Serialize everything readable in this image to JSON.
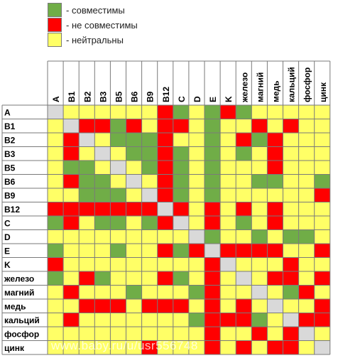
{
  "legend": [
    {
      "color": "#70ad47",
      "label": "- совместимы"
    },
    {
      "color": "#ff0000",
      "label": "- не совместимы"
    },
    {
      "color": "#ffff66",
      "label": "- нейтральны"
    }
  ],
  "watermark": "www.baby.ru/u/usr556748",
  "chart_data": {
    "type": "heatmap",
    "title": "",
    "columns": [
      "A",
      "B1",
      "B2",
      "B3",
      "B5",
      "B6",
      "B9",
      "B12",
      "C",
      "D",
      "E",
      "K",
      "железо",
      "магний",
      "медь",
      "кальций",
      "фосфор",
      "цинк"
    ],
    "rows": [
      "A",
      "B1",
      "B2",
      "B3",
      "B5",
      "B6",
      "B9",
      "B12",
      "C",
      "D",
      "E",
      "K",
      "железо",
      "магний",
      "медь",
      "кальций",
      "фосфор",
      "цинк"
    ],
    "codes": {
      "G": "совместимы",
      "R": "не совместимы",
      "Y": "нейтральны",
      "S": "—"
    },
    "colors": {
      "G": "#70ad47",
      "R": "#ff0000",
      "Y": "#ffff66",
      "S": "#d9d9d9"
    },
    "matrix": [
      "SYYYYYYRGYGRGYYYYY",
      "YSRRGRYRRYGYYRYRYY",
      "YRSYGGGRYYGYRGRYYY",
      "YRYSYGGRGYGYGYRYYY",
      "YGGYSYGRGYGYYYRYYY",
      "YRGGYSYRGYGYYGGYYG",
      "YYGGGYSRGYGYYYYYYR",
      "RRRRRRRSRYRYRYRYYY",
      "GRYGGYGRSYRYGYRYYY",
      "YYYYYYYYYSGYYGYGGY",
      "GYYYGYYRGRSRRRRYYR",
      "RYYYYYYYYYRSYYYRYY",
      "GYRGYYYRGYRYSYRRYR",
      "YRYYYGYYYGRYYSYGRY",
      "YYRRRYRRRYRYRYSYYR",
      "YRYYYYYYYGRRRGYSRR",
      "YYYYYYYYYYRYYRYRSY",
      "YYYYYYRYYYRYRYRRYS"
    ]
  }
}
